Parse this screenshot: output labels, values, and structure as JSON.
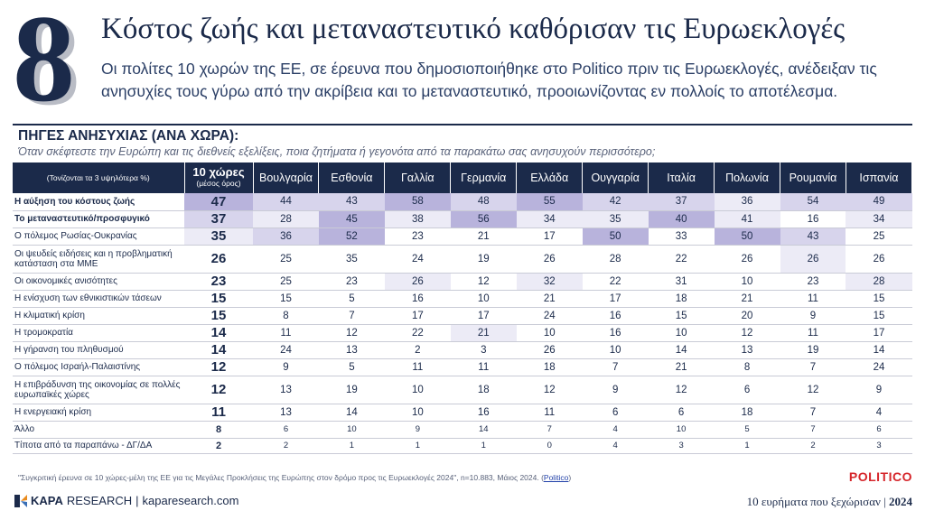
{
  "header": {
    "number": "8",
    "title": "Κόστος ζωής και μεταναστευτικό καθόρισαν τις Ευρωεκλογές",
    "subtitle": "Οι πολίτες 10 χωρών της ΕΕ, σε έρευνα που δημοσιοποιήθηκε στο Politico πριν τις Ευρωεκλογές, ανέδειξαν τις ανησυχίες τους γύρω από την ακρίβεια και το μεταναστευτικό, προοιωνίζοντας εν πολλοίς το αποτέλεσμα."
  },
  "section": {
    "title": "ΠΗΓΕΣ ΑΝΗΣΥΧΙΑΣ (ΑΝΑ ΧΩΡΑ):",
    "question": "Όταν σκέφτεστε την Ευρώπη και τις διεθνείς εξελίξεις, ποια ζητήματα ή γεγονότα από τα παρακάτω σας ανησυχούν περισσότερο;"
  },
  "table": {
    "note_header": "(Τονίζονται τα 3 υψηλότερα %)",
    "avg_header": "10 χώρες",
    "avg_subheader": "(μέσος όρος)",
    "countries": [
      "Βουλγαρία",
      "Εσθονία",
      "Γαλλία",
      "Γερμανία",
      "Ελλάδα",
      "Ουγγαρία",
      "Ιταλία",
      "Πολωνία",
      "Ρουμανία",
      "Ισπανία"
    ],
    "rows": [
      {
        "label": "Η αύξηση του κόστους ζωής",
        "bold": true,
        "avg": "47",
        "values": [
          "44",
          "43",
          "58",
          "48",
          "55",
          "42",
          "37",
          "36",
          "54",
          "49"
        ],
        "levels": [
          1,
          2,
          2,
          1,
          2,
          1,
          2,
          2,
          3,
          2,
          2
        ]
      },
      {
        "label": "Το μεταναστευτικό/προσφυγικό",
        "bold": true,
        "avg": "37",
        "values": [
          "28",
          "45",
          "38",
          "56",
          "34",
          "35",
          "40",
          "41",
          "16",
          "34"
        ],
        "levels": [
          2,
          3,
          1,
          3,
          1,
          3,
          3,
          1,
          3,
          0,
          3
        ]
      },
      {
        "label": "Ο πόλεμος Ρωσίας-Ουκρανίας",
        "bold": false,
        "avg": "35",
        "values": [
          "36",
          "52",
          "23",
          "21",
          "17",
          "50",
          "33",
          "50",
          "43",
          "25"
        ],
        "levels": [
          3,
          2,
          1,
          0,
          0,
          0,
          1,
          0,
          1,
          2,
          0
        ]
      },
      {
        "label": "Οι ψευδείς ειδήσεις και η προβληματική κατάσταση στα ΜΜΕ",
        "bold": false,
        "avg": "26",
        "values": [
          "25",
          "35",
          "24",
          "19",
          "26",
          "28",
          "22",
          "26",
          "26",
          "26"
        ],
        "levels": [
          0,
          0,
          0,
          0,
          0,
          0,
          0,
          0,
          0,
          3,
          0
        ]
      },
      {
        "label": "Οι οικονομικές ανισότητες",
        "bold": false,
        "avg": "23",
        "values": [
          "25",
          "23",
          "26",
          "12",
          "32",
          "22",
          "31",
          "10",
          "23",
          "28"
        ],
        "levels": [
          0,
          0,
          0,
          3,
          0,
          3,
          0,
          0,
          0,
          0,
          3
        ]
      },
      {
        "label": "Η ενίσχυση των εθνικιστικών τάσεων",
        "bold": false,
        "avg": "15",
        "values": [
          "15",
          "5",
          "16",
          "10",
          "21",
          "17",
          "18",
          "21",
          "11",
          "15"
        ],
        "levels": [
          0,
          0,
          0,
          0,
          0,
          0,
          0,
          0,
          0,
          0,
          0
        ]
      },
      {
        "label": "Η κλιματική κρίση",
        "bold": false,
        "avg": "15",
        "values": [
          "8",
          "7",
          "17",
          "17",
          "24",
          "16",
          "15",
          "20",
          "9",
          "15"
        ],
        "levels": [
          0,
          0,
          0,
          0,
          0,
          0,
          0,
          0,
          0,
          0,
          0
        ]
      },
      {
        "label": "Η τρομοκρατία",
        "bold": false,
        "avg": "14",
        "values": [
          "11",
          "12",
          "22",
          "21",
          "10",
          "16",
          "10",
          "12",
          "11",
          "17"
        ],
        "levels": [
          0,
          0,
          0,
          0,
          3,
          0,
          0,
          0,
          0,
          0,
          0
        ]
      },
      {
        "label": "Η γήρανση του πληθυσμού",
        "bold": false,
        "avg": "14",
        "values": [
          "24",
          "13",
          "2",
          "3",
          "26",
          "10",
          "14",
          "13",
          "19",
          "14"
        ],
        "levels": [
          0,
          0,
          0,
          0,
          0,
          0,
          0,
          0,
          0,
          0,
          0
        ]
      },
      {
        "label": "Ο πόλεμος Ισραήλ-Παλαιστίνης",
        "bold": false,
        "avg": "12",
        "values": [
          "9",
          "5",
          "11",
          "11",
          "18",
          "7",
          "21",
          "8",
          "7",
          "24"
        ],
        "levels": [
          0,
          0,
          0,
          0,
          0,
          0,
          0,
          0,
          0,
          0,
          0
        ]
      },
      {
        "label": "Η επιβράδυνση της οικονομίας σε πολλές ευρωπαϊκές χώρες",
        "bold": false,
        "avg": "12",
        "values": [
          "13",
          "19",
          "10",
          "18",
          "12",
          "9",
          "12",
          "6",
          "12",
          "9"
        ],
        "levels": [
          0,
          0,
          0,
          0,
          0,
          0,
          0,
          0,
          0,
          0,
          0
        ]
      },
      {
        "label": "Η ενεργειακή κρίση",
        "bold": false,
        "avg": "11",
        "values": [
          "13",
          "14",
          "10",
          "16",
          "11",
          "6",
          "6",
          "18",
          "7",
          "4"
        ],
        "levels": [
          0,
          0,
          0,
          0,
          0,
          0,
          0,
          0,
          0,
          0,
          0
        ]
      },
      {
        "label": "Άλλο",
        "bold": false,
        "avg": "8",
        "values": [
          "6",
          "10",
          "9",
          "14",
          "7",
          "4",
          "10",
          "5",
          "7",
          "6"
        ],
        "levels": [
          0,
          0,
          0,
          0,
          0,
          0,
          0,
          0,
          0,
          0,
          0
        ],
        "small": true
      },
      {
        "label": "Τίποτα από τα παραπάνω - ΔΓ/ΔΑ",
        "bold": false,
        "avg": "2",
        "values": [
          "2",
          "1",
          "1",
          "1",
          "0",
          "4",
          "3",
          "1",
          "2",
          "3"
        ],
        "levels": [
          0,
          0,
          0,
          0,
          0,
          0,
          0,
          0,
          0,
          0,
          0
        ],
        "small": true
      }
    ]
  },
  "footnote": {
    "text": "\"Συγκριτική έρευνα σε 10  χώρες-μέλη της ΕΕ για τις Μεγάλες Προκλήσεις της Ευρώπης στον δρόμο προς τις Ευρωεκλογές 2024\", n=10.883, Μάιος 2024. (",
    "link": "Politico",
    "close": ")"
  },
  "brand": {
    "politico": "POLITICO",
    "kapa_bold": "KAPA",
    "kapa_rest": "RESEARCH",
    "site": "kaparesearch.com",
    "series": "10 ευρήματα που ξεχώρισαν",
    "year": "2024"
  },
  "colors": {
    "navy": "#1b2a4a",
    "highlight_strong": "#b8b3dc",
    "highlight_mid": "#d7d4ec",
    "highlight_light": "#ecebf6",
    "politico_red": "#d6262b"
  }
}
